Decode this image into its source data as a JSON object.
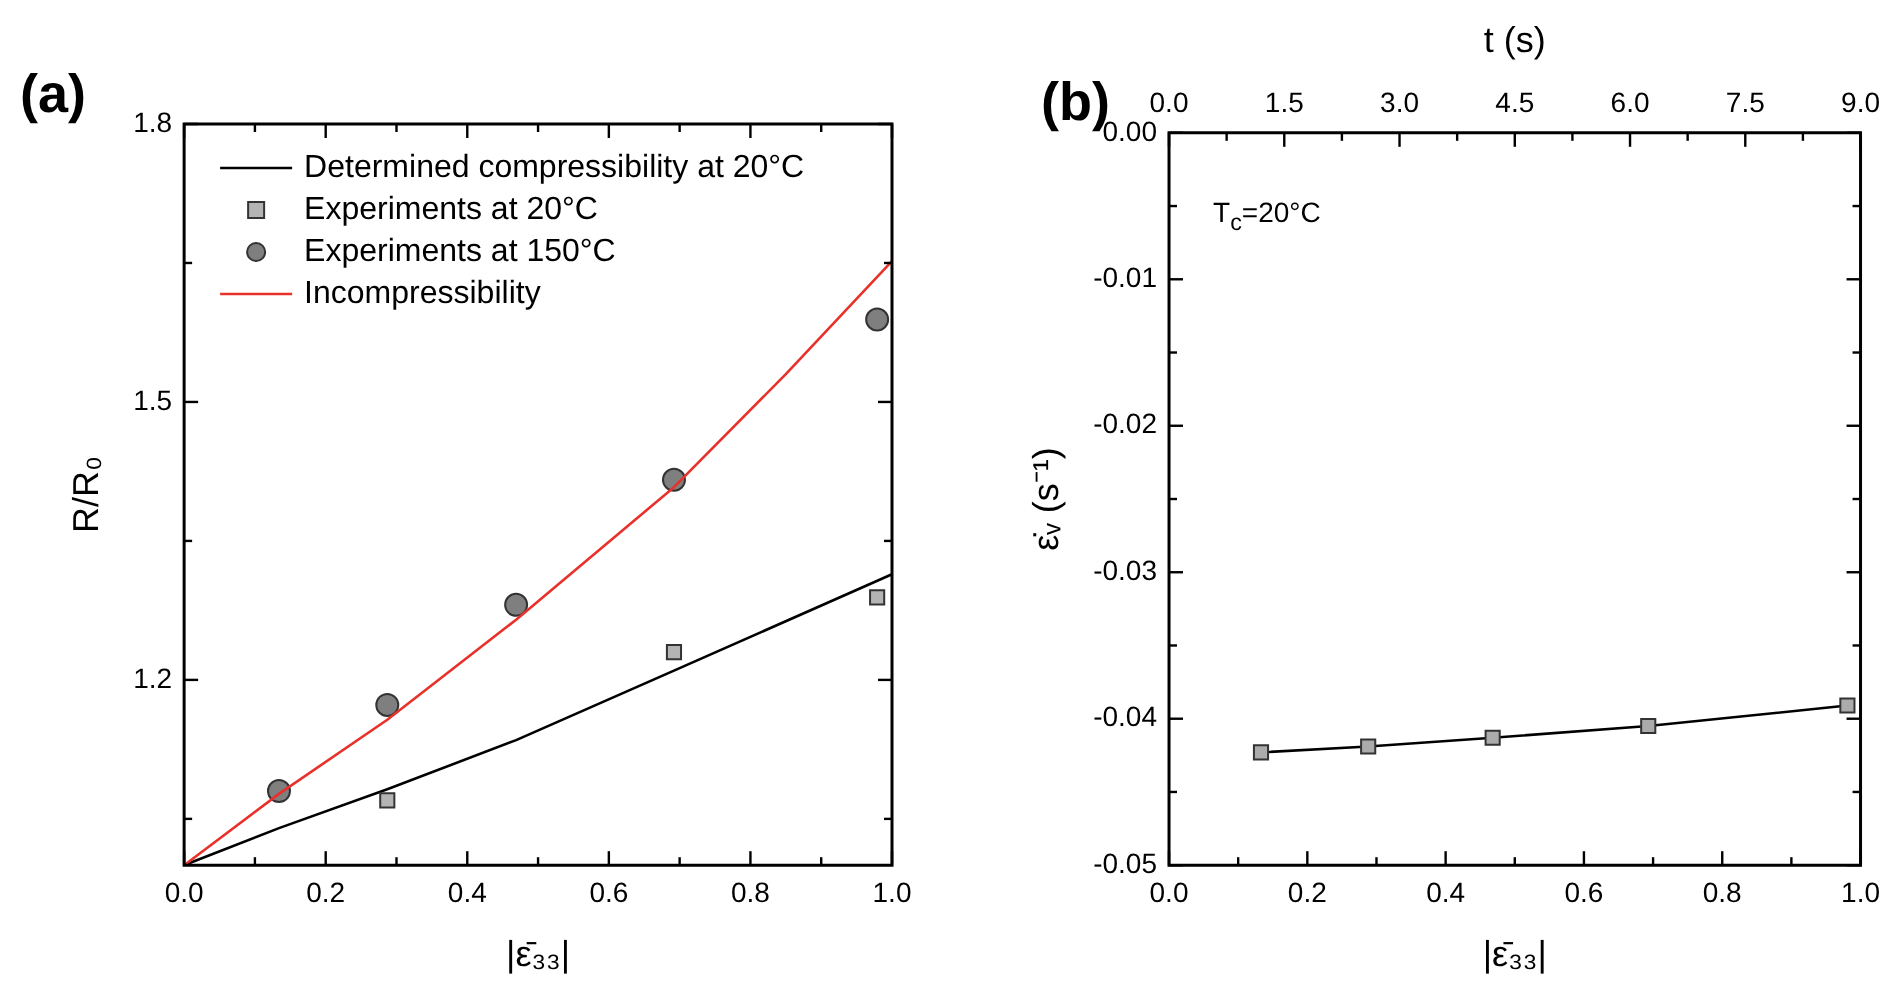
{
  "chart_data": [
    {
      "type": "line",
      "annotations": [
        "(a)"
      ],
      "xlabel": "|ε̄₃₃|",
      "ylabel": "R/R₀",
      "xlim": [
        0,
        1
      ],
      "ylim": [
        1.0,
        1.8
      ],
      "xticks": [
        {
          "value": 0,
          "label": "0.0"
        },
        {
          "value": 0.1,
          "label": null
        },
        {
          "value": 0.2,
          "label": "0.2"
        },
        {
          "value": 0.3,
          "label": null
        },
        {
          "value": 0.4,
          "label": "0.4"
        },
        {
          "value": 0.5,
          "label": null
        },
        {
          "value": 0.6,
          "label": "0.6"
        },
        {
          "value": 0.7,
          "label": null
        },
        {
          "value": 0.8,
          "label": "0.8"
        },
        {
          "value": 0.9,
          "label": null
        },
        {
          "value": 1,
          "label": "1.0"
        }
      ],
      "yticks": [
        {
          "value": 1.05,
          "label": null
        },
        1.2,
        {
          "value": 1.35,
          "label": null
        },
        1.5,
        {
          "value": 1.65,
          "label": null
        },
        1.8
      ],
      "legend": "top left",
      "series": [
        {
          "name": "Determined compressibility at 20°C",
          "type": "line",
          "marker": "none",
          "color": "#000000",
          "x": [
            0,
            0.134,
            0.287,
            0.469,
            0.692,
            1.0
          ],
          "values": [
            1.0,
            1.04,
            1.082,
            1.135,
            1.21,
            1.314
          ]
        },
        {
          "name": "Experiments at 20°C",
          "type": "scatter",
          "marker": "square",
          "color": "#b4b4b4",
          "x": [
            0.287,
            0.469,
            0.692,
            0.979
          ],
          "values": [
            1.07,
            null,
            1.23,
            1.289
          ]
        },
        {
          "name": "Experiments at 150°C",
          "type": "scatter",
          "marker": "circle",
          "color": "#7f7f7f",
          "x": [
            0.134,
            0.287,
            0.469,
            0.692,
            0.979
          ],
          "values": [
            1.08,
            1.173,
            1.281,
            1.416,
            1.589
          ]
        },
        {
          "name": "Incompressibility",
          "type": "line",
          "marker": "none",
          "color": "#e8312b",
          "x": [
            0,
            0.134,
            0.287,
            0.469,
            0.692,
            0.85,
            1.0
          ],
          "values": [
            1.0,
            1.077,
            1.157,
            1.265,
            1.408,
            1.53,
            1.652
          ]
        }
      ]
    },
    {
      "type": "line",
      "annotations": [
        "(b)",
        "T$_{c}$=20°C"
      ],
      "xlabel": "|ε̄₃₃|",
      "ylabel": "ε̇ᵥ (s⁻¹)",
      "x2label": "t (s)",
      "xlim": [
        0,
        1
      ],
      "ylim": [
        -0.05,
        0
      ],
      "x2lim": [
        0,
        9
      ],
      "xticks": [
        {
          "value": 0,
          "label": "0.0"
        },
        {
          "value": 0.1,
          "label": null
        },
        {
          "value": 0.2,
          "label": "0.2"
        },
        {
          "value": 0.3,
          "label": null
        },
        {
          "value": 0.4,
          "label": "0.4"
        },
        {
          "value": 0.5,
          "label": null
        },
        {
          "value": 0.6,
          "label": "0.6"
        },
        {
          "value": 0.7,
          "label": null
        },
        {
          "value": 0.8,
          "label": "0.8"
        },
        {
          "value": 0.9,
          "label": null
        },
        {
          "value": 1,
          "label": "1.0"
        }
      ],
      "x2ticks": [
        {
          "value": 0,
          "label": "0.0"
        },
        {
          "value": 0.75,
          "label": null
        },
        1.5,
        {
          "value": 2.25,
          "label": null
        },
        {
          "value": 3,
          "label": "3.0"
        },
        {
          "value": 3.75,
          "label": null
        },
        4.5,
        {
          "value": 5.25,
          "label": null
        },
        {
          "value": 6,
          "label": "6.0"
        },
        {
          "value": 6.75,
          "label": null
        },
        7.5,
        {
          "value": 8.25,
          "label": null
        },
        {
          "value": 9,
          "label": "9.0"
        }
      ],
      "yticks": [
        {
          "value": -0.05,
          "label": "-0.05"
        },
        {
          "value": -0.045,
          "label": null
        },
        {
          "value": -0.04,
          "label": "-0.04"
        },
        {
          "value": -0.035,
          "label": null
        },
        {
          "value": -0.03,
          "label": "-0.03"
        },
        {
          "value": -0.025,
          "label": null
        },
        {
          "value": -0.02,
          "label": "-0.02"
        },
        {
          "value": -0.015,
          "label": null
        },
        {
          "value": -0.01,
          "label": "-0.01"
        },
        {
          "value": -0.005,
          "label": null
        },
        {
          "value": 0,
          "label": "0.00"
        }
      ],
      "series": [
        {
          "type": "line",
          "marker": "square",
          "color": "#000000",
          "x": [
            0.133,
            0.288,
            0.468,
            0.693,
            0.981
          ],
          "values": [
            -0.0423,
            -0.0419,
            -0.0413,
            -0.0405,
            -0.0391
          ]
        }
      ]
    }
  ]
}
